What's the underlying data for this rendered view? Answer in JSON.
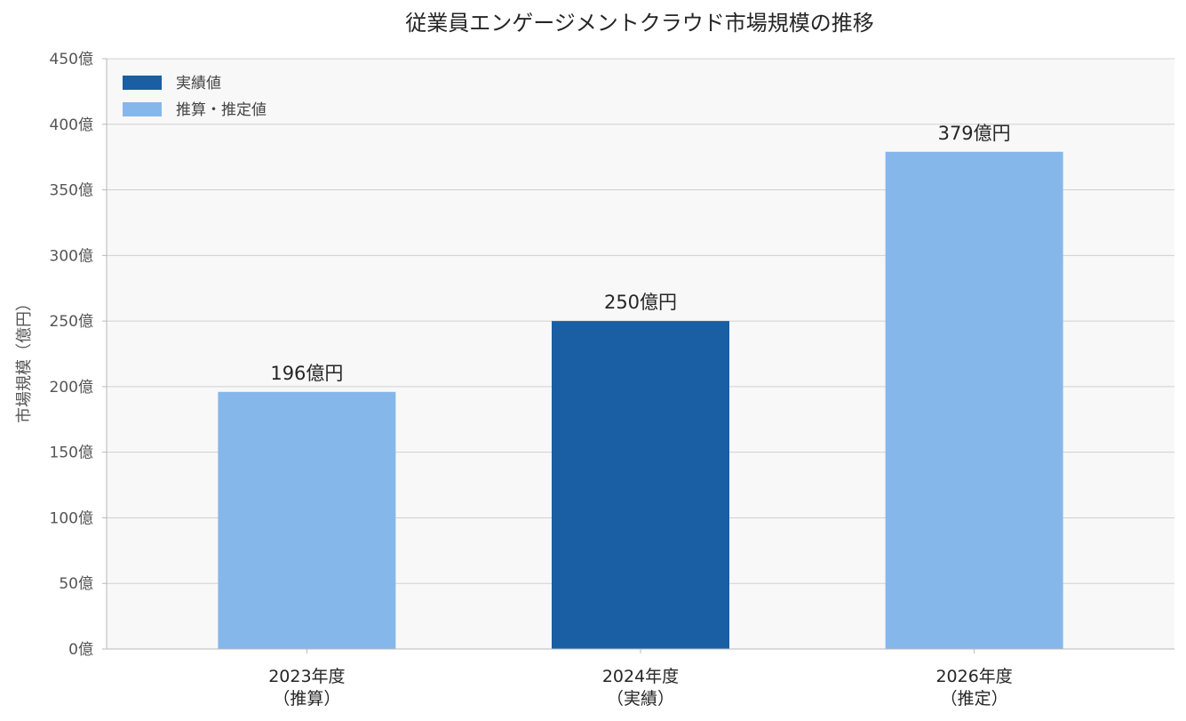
{
  "chart_data": {
    "type": "bar",
    "title": "従業員エンゲージメントクラウド市場規模の推移",
    "xlabel": "",
    "ylabel": "市場規模（億円）",
    "ylim": [
      0,
      450
    ],
    "yticks": [
      0,
      50,
      100,
      150,
      200,
      250,
      300,
      350,
      400,
      450
    ],
    "ytick_suffix": "億",
    "grid": "horizontal",
    "legend_position": "top-left",
    "categories": [
      {
        "line1": "2023年度",
        "line2": "（推算）"
      },
      {
        "line1": "2024年度",
        "line2": "（実績）"
      },
      {
        "line1": "2026年度",
        "line2": "（推定）"
      }
    ],
    "values": [
      196,
      250,
      379
    ],
    "data_labels": [
      "196億円",
      "250億円",
      "379億円"
    ],
    "bar_kinds": [
      "estimate",
      "actual",
      "estimate"
    ],
    "legend": [
      {
        "key": "actual",
        "label": "実績値",
        "color": "#1a5fa3"
      },
      {
        "key": "estimate",
        "label": "推算・推定値",
        "color": "#86b7ea"
      }
    ],
    "colors": {
      "actual": "#1a5fa3",
      "estimate": "#86b7ea",
      "plot_background": "#f8f8f8",
      "grid": "#d0d0d0",
      "axis": "#b8b8b8"
    }
  }
}
